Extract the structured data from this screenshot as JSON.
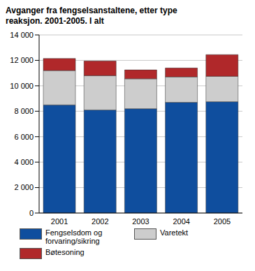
{
  "chart_data": {
    "type": "bar",
    "title": "Avganger fra fengselsanstaltene, etter type reaksjon. 2001-2005. I alt",
    "categories": [
      "2001",
      "2002",
      "2003",
      "2004",
      "2005"
    ],
    "series": [
      {
        "name": "Fengselsdom og forvaring/sikring",
        "color": "#0f4e9e",
        "values": [
          8500,
          8100,
          8200,
          8700,
          8750
        ]
      },
      {
        "name": "Varetekt",
        "color": "#cdcdcd",
        "values": [
          2700,
          2700,
          2350,
          2000,
          2000
        ]
      },
      {
        "name": "Bøtesoning",
        "color": "#b0282a",
        "values": [
          950,
          1150,
          700,
          700,
          1700
        ]
      }
    ],
    "ylim": [
      0,
      14000
    ],
    "yticks": [
      0,
      {
        "value": 2000,
        "label": "2 000"
      },
      {
        "value": 4000,
        "label": "4 000"
      },
      {
        "value": 6000,
        "label": "6 000"
      },
      {
        "value": 8000,
        "label": "8 000"
      },
      {
        "value": 10000,
        "label": "10 000"
      },
      {
        "value": 12000,
        "label": "12 000"
      },
      {
        "value": 14000,
        "label": "14 000"
      }
    ],
    "stacked": true,
    "grid": true,
    "legend": "bottom"
  }
}
